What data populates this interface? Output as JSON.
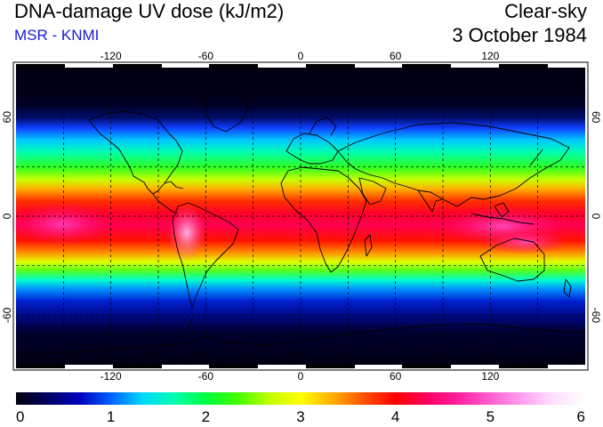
{
  "header": {
    "title": "DNA-damage UV dose (kJ/m2)",
    "subtitle": "MSR - KNMI",
    "condition": "Clear-sky",
    "date": "3 October 1984"
  },
  "map": {
    "lon_ticks": [
      -120,
      -60,
      0,
      60,
      120
    ],
    "lat_ticks": [
      60,
      0,
      -60
    ],
    "lon_range": [
      -180,
      180
    ],
    "lat_range": [
      -90,
      90
    ],
    "gridlines": "dashed, every 30 degrees"
  },
  "colorbar": {
    "tick_labels": [
      "0",
      "1",
      "2",
      "3",
      "4",
      "5",
      "6"
    ],
    "range": [
      0,
      6
    ],
    "colors": [
      "#000010",
      "#000060",
      "#0000c0",
      "#0060ff",
      "#00d8ff",
      "#00ffb0",
      "#00ff40",
      "#40ff00",
      "#c0ff00",
      "#ffff00",
      "#ffb000",
      "#ff5000",
      "#ff0000",
      "#ff0060",
      "#ff20a0",
      "#ff60d0",
      "#ffa0f0",
      "#ffe0ff",
      "#ffffff"
    ]
  },
  "colors": {
    "subtitle": "#1a1ad6",
    "coastline": "#000000",
    "grid": "#000000"
  }
}
